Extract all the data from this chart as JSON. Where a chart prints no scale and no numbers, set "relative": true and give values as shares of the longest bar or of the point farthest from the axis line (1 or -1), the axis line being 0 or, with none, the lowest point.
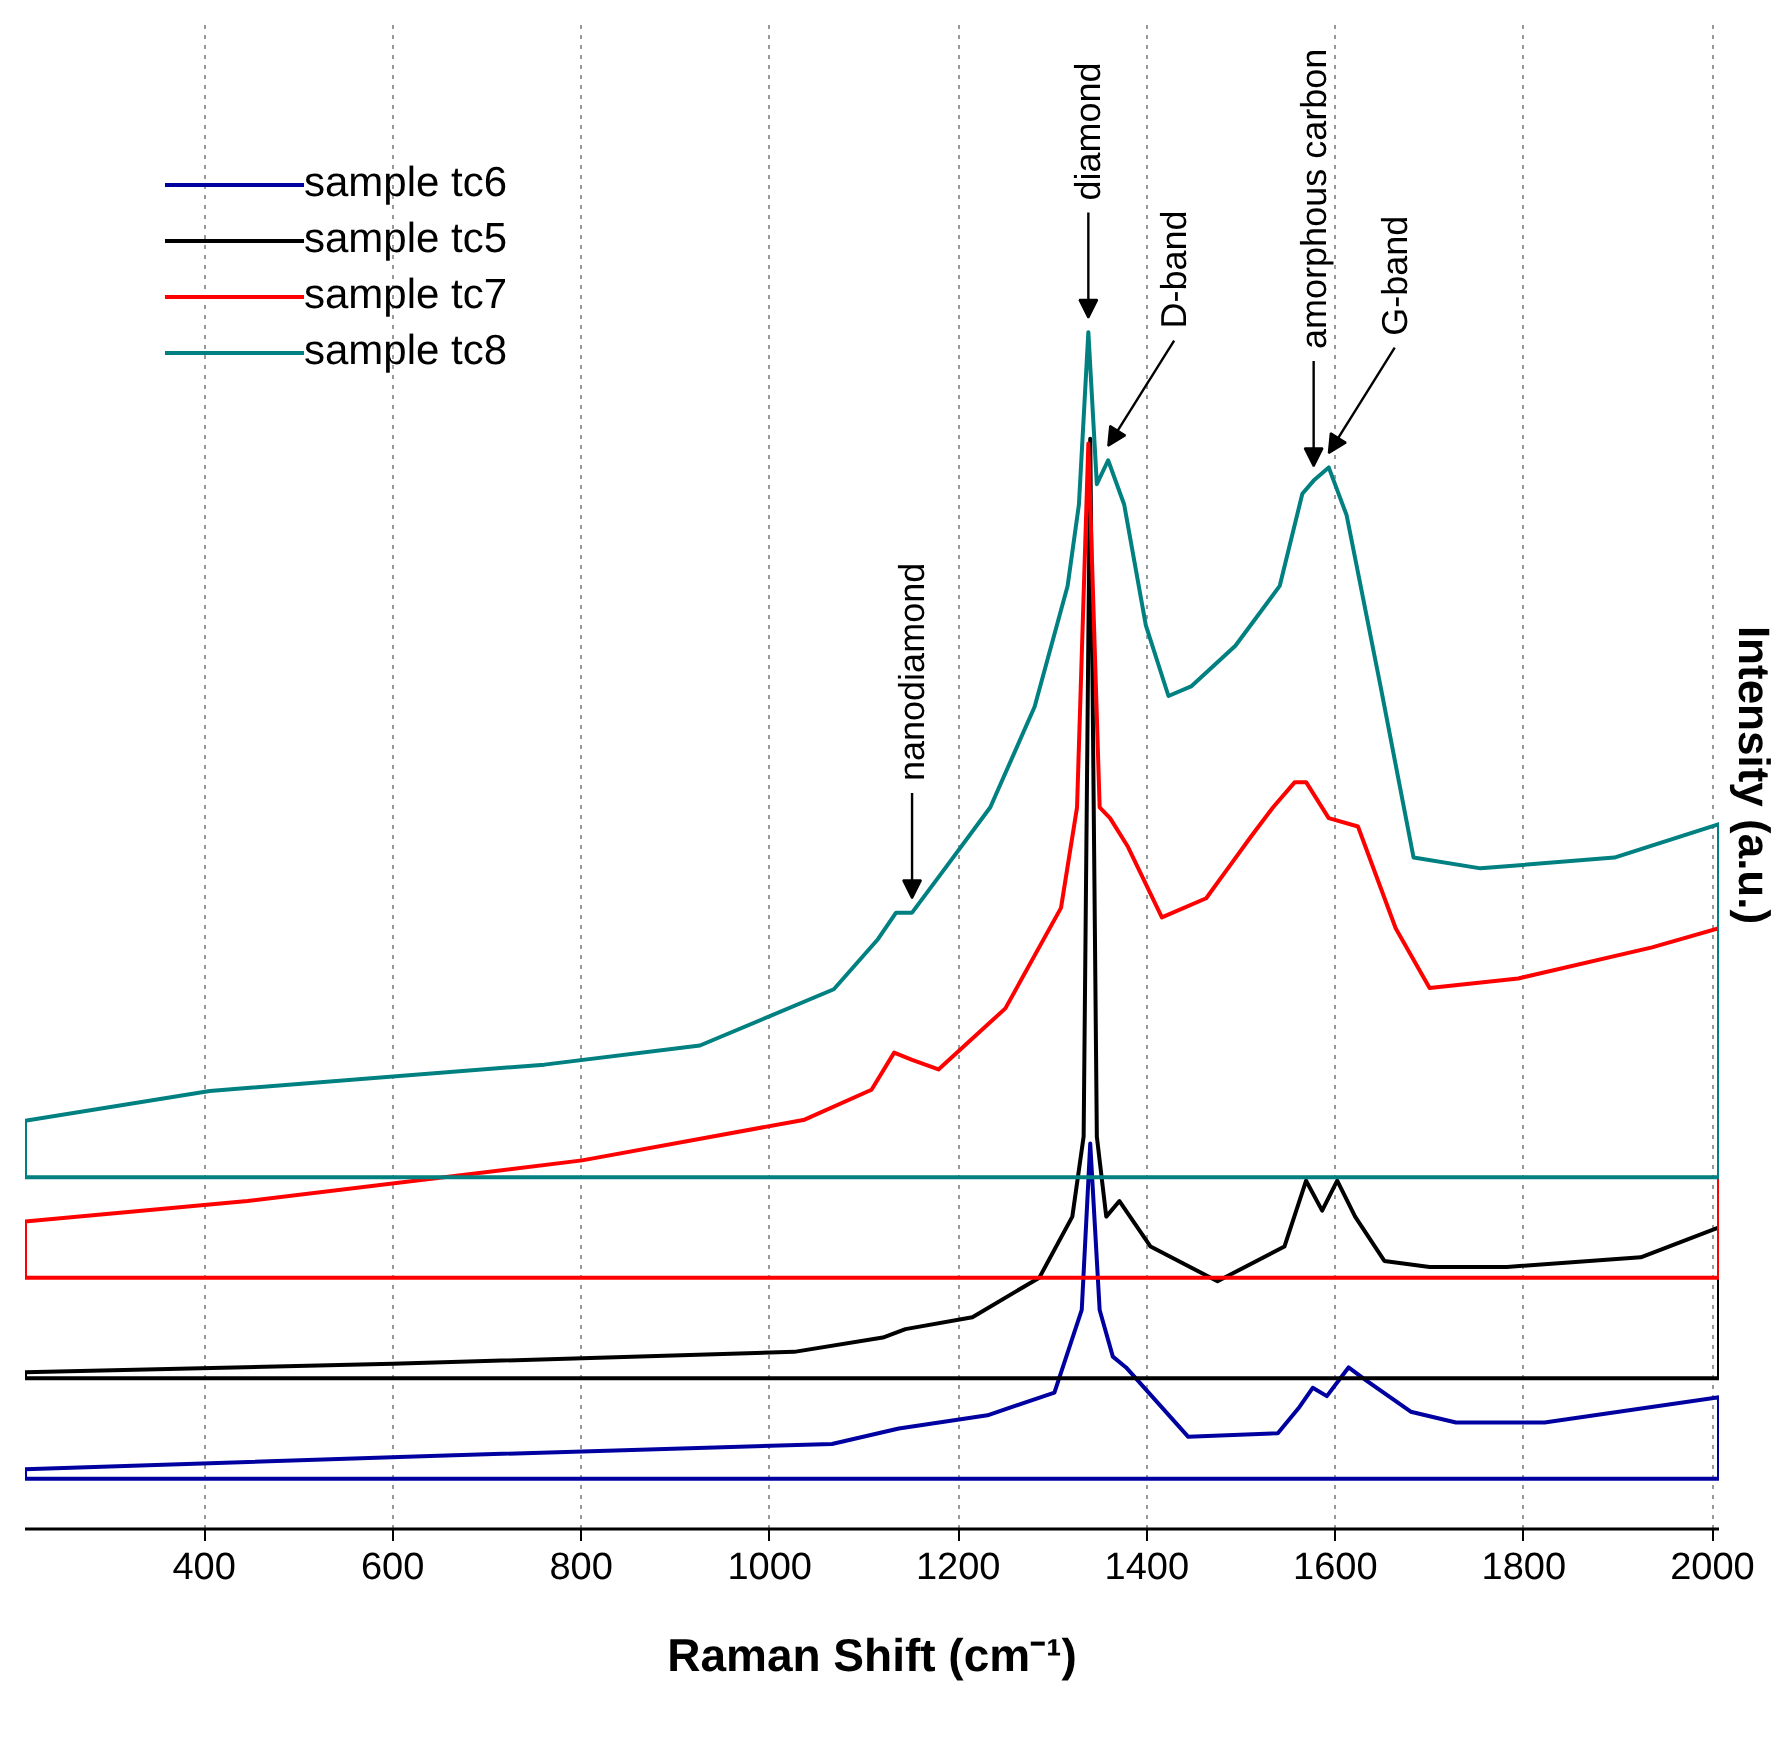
{
  "chart_data": {
    "type": "line",
    "relative": true,
    "xlabel": "Raman Shift (cm⁻¹)",
    "ylabel": "Intensity (a.u.)",
    "xlim": [
      210,
      2007
    ],
    "xticks": [
      400,
      600,
      800,
      1000,
      1200,
      1400,
      1600,
      1800,
      2000
    ],
    "grid": "x",
    "legend": "top left",
    "line_style": "solid",
    "annotations": [
      {
        "text": "nanodiamond",
        "x": 1151,
        "y": 0.515
      },
      {
        "text": "diamond",
        "x": 1338,
        "y": 1.0
      },
      {
        "text": "D-band",
        "x": 1359,
        "y": 0.893
      },
      {
        "text": "amorphous carbon",
        "x": 1577,
        "y": 0.876
      },
      {
        "text": "G-band",
        "x": 1593,
        "y": 0.887
      }
    ],
    "ref_lines": [
      {
        "axis": "y",
        "value": 0.042,
        "color": "#0000a0"
      },
      {
        "axis": "y",
        "value": 0.126,
        "color": "#000000"
      },
      {
        "axis": "y",
        "value": 0.21,
        "color": "#ff0000"
      },
      {
        "axis": "y",
        "value": 0.294,
        "color": "#008080"
      }
    ],
    "series": [
      {
        "name": "sample tc6",
        "color": "#0000a0",
        "x": [
          210,
          210,
          640,
          1066,
          1137,
          1231,
          1302,
          1331,
          1340,
          1350,
          1364,
          1378,
          1444,
          1539,
          1562,
          1576,
          1591,
          1614,
          1633,
          1680,
          1728,
          1822,
          2007,
          2007
        ],
        "values": [
          0.042,
          0.05,
          0.061,
          0.071,
          0.084,
          0.095,
          0.114,
          0.183,
          0.322,
          0.183,
          0.144,
          0.135,
          0.077,
          0.08,
          0.102,
          0.118,
          0.111,
          0.135,
          0.124,
          0.098,
          0.089,
          0.089,
          0.11,
          0.042
        ]
      },
      {
        "name": "sample tc5",
        "color": "#000000",
        "x": [
          210,
          210,
          600,
          1026,
          1120,
          1144,
          1215,
          1286,
          1321,
          1333,
          1340,
          1347,
          1357,
          1371,
          1404,
          1475,
          1546,
          1569,
          1586,
          1602,
          1621,
          1652,
          1700,
          1782,
          1924,
          2007,
          2007
        ],
        "values": [
          0.126,
          0.131,
          0.138,
          0.148,
          0.16,
          0.167,
          0.177,
          0.21,
          0.261,
          0.328,
          0.911,
          0.328,
          0.261,
          0.274,
          0.236,
          0.207,
          0.236,
          0.291,
          0.266,
          0.291,
          0.261,
          0.224,
          0.219,
          0.219,
          0.227,
          0.252,
          0.126
        ]
      },
      {
        "name": "sample tc7",
        "color": "#ff0000",
        "x": [
          210,
          210,
          446,
          801,
          1037,
          1108,
          1132,
          1151,
          1179,
          1250,
          1309,
          1326,
          1338,
          1350,
          1361,
          1380,
          1416,
          1463,
          1487,
          1510,
          1534,
          1557,
          1569,
          1593,
          1624,
          1664,
          1700,
          1794,
          1936,
          2007,
          2007
        ],
        "values": [
          0.21,
          0.257,
          0.274,
          0.308,
          0.342,
          0.367,
          0.398,
          0.392,
          0.384,
          0.435,
          0.519,
          0.603,
          0.907,
          0.603,
          0.594,
          0.57,
          0.511,
          0.527,
          0.553,
          0.578,
          0.603,
          0.624,
          0.624,
          0.594,
          0.587,
          0.502,
          0.452,
          0.46,
          0.486,
          0.502,
          0.21
        ]
      },
      {
        "name": "sample tc8",
        "color": "#008080",
        "x": [
          210,
          210,
          406,
          761,
          926,
          1068,
          1115,
          1134,
          1151,
          1186,
          1234,
          1281,
          1316,
          1328,
          1338,
          1347,
          1359,
          1376,
          1399,
          1423,
          1447,
          1494,
          1541,
          1565,
          1577,
          1593,
          1612,
          1648,
          1683,
          1754,
          1896,
          2007,
          2007
        ],
        "values": [
          0.294,
          0.341,
          0.366,
          0.388,
          0.404,
          0.451,
          0.493,
          0.515,
          0.515,
          0.552,
          0.603,
          0.687,
          0.788,
          0.856,
          1.0,
          0.873,
          0.893,
          0.856,
          0.755,
          0.696,
          0.704,
          0.738,
          0.788,
          0.865,
          0.876,
          0.887,
          0.847,
          0.704,
          0.561,
          0.552,
          0.561,
          0.589,
          0.294
        ]
      }
    ]
  }
}
